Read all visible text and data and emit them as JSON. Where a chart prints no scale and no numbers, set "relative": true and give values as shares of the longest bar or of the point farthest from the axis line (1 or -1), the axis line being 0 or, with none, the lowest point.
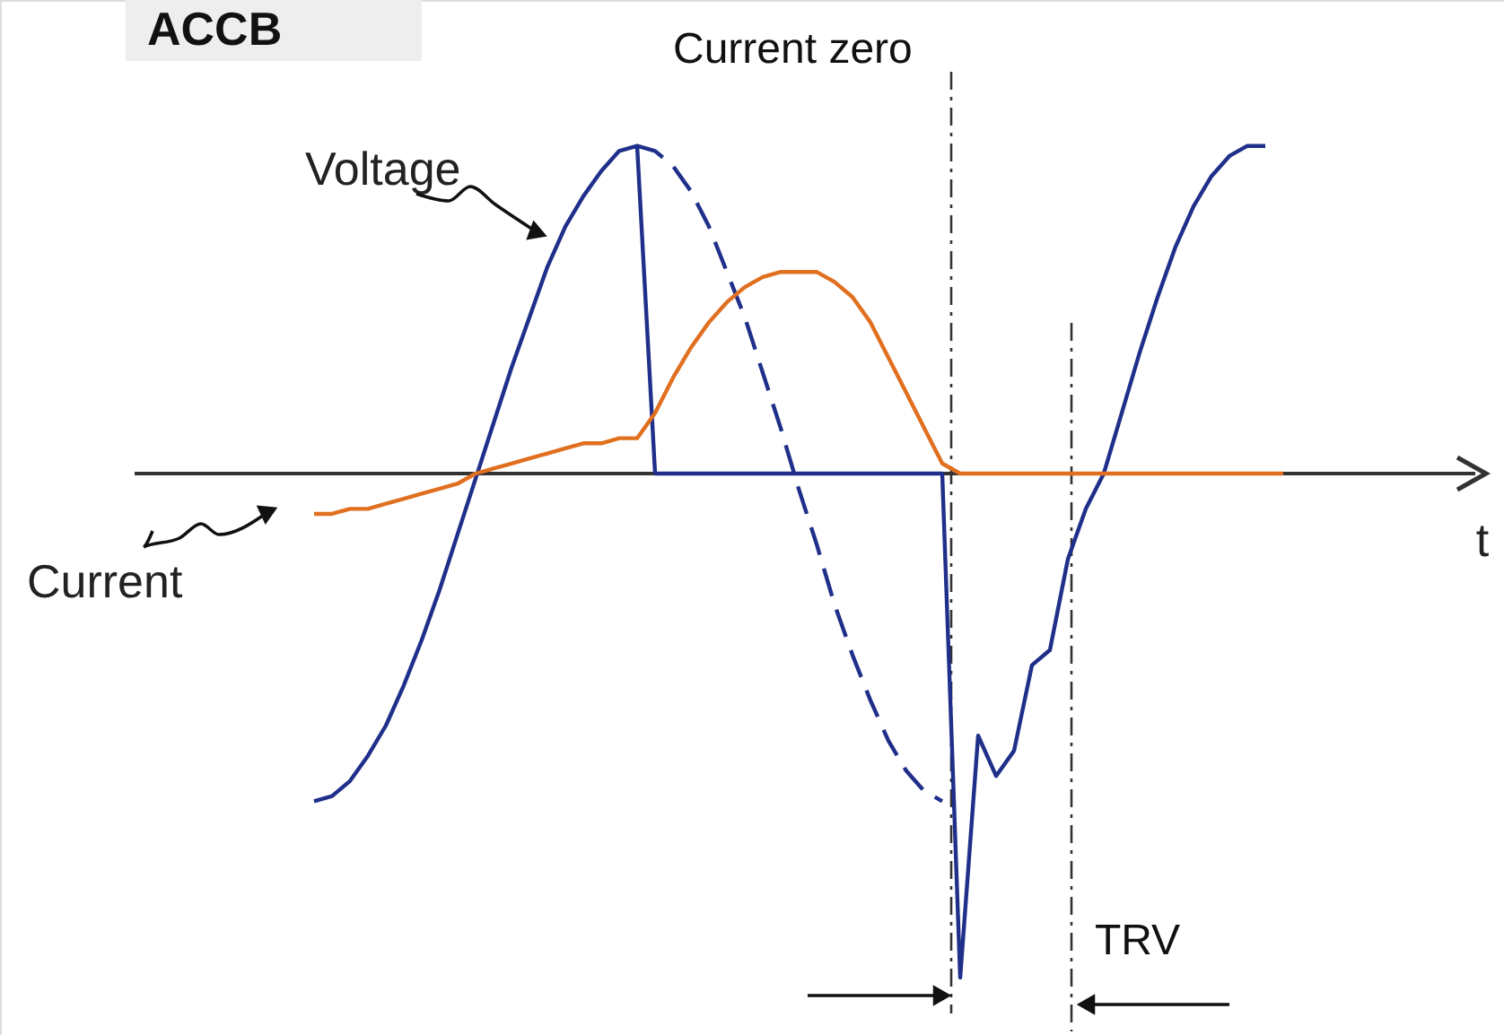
{
  "chart_data": {
    "type": "line",
    "relative": true,
    "xlabel": "t",
    "categories": [
      null,
      null,
      null,
      null,
      null,
      null,
      null,
      null,
      null,
      null,
      null,
      null,
      null,
      null,
      null,
      null,
      null,
      null,
      null,
      null,
      null,
      null,
      null,
      null,
      null,
      null,
      null,
      null,
      null,
      null,
      null,
      null,
      null,
      null,
      null,
      null,
      null,
      null,
      null,
      null,
      null,
      null,
      null,
      null,
      null,
      null,
      null,
      null,
      null,
      null,
      null,
      null,
      null,
      null,
      null
    ],
    "series": [
      {
        "name": "Voltage",
        "color": "#1f2f8a",
        "line_style": "solid",
        "values": [
          -0.65,
          -0.64,
          -0.61,
          -0.56,
          -0.5,
          -0.42,
          -0.33,
          -0.23,
          -0.12,
          -0.01,
          0.1,
          0.21,
          0.31,
          0.41,
          0.49,
          0.55,
          0.6,
          0.64,
          0.65,
          0,
          0,
          0,
          0,
          0,
          0,
          0,
          0,
          0,
          0,
          0,
          0,
          0,
          0,
          0,
          0,
          0,
          -1.0,
          -0.52,
          -0.6,
          -0.55,
          -0.38,
          -0.35,
          -0.17,
          -0.07,
          0.0,
          0.12,
          0.24,
          0.35,
          0.45,
          0.53,
          0.59,
          0.63,
          0.65,
          0.65,
          null
        ]
      },
      {
        "color": "#1f2f8a",
        "line_style": "dashed",
        "values": [
          null,
          null,
          null,
          null,
          null,
          null,
          null,
          null,
          null,
          null,
          null,
          null,
          null,
          null,
          null,
          null,
          null,
          null,
          0.65,
          0.64,
          0.61,
          0.56,
          0.49,
          0.4,
          0.31,
          0.2,
          0.09,
          -0.03,
          -0.14,
          -0.26,
          -0.36,
          -0.45,
          -0.53,
          -0.59,
          -0.63,
          -0.65,
          null,
          null,
          null,
          null,
          null,
          null,
          null,
          null,
          null,
          null,
          null,
          null,
          null,
          null,
          null,
          null,
          null,
          null,
          null
        ]
      },
      {
        "name": "Current",
        "color": "#e07020",
        "line_style": "solid",
        "values": [
          -0.08,
          -0.08,
          -0.07,
          -0.07,
          -0.06,
          -0.05,
          -0.04,
          -0.03,
          -0.02,
          0.0,
          0.01,
          0.02,
          0.03,
          0.04,
          0.05,
          0.06,
          0.06,
          0.07,
          0.07,
          0.12,
          0.19,
          0.25,
          0.3,
          0.34,
          0.37,
          0.39,
          0.4,
          0.4,
          0.4,
          0.38,
          0.35,
          0.3,
          0.23,
          0.16,
          0.09,
          0.02,
          0,
          0,
          0,
          0,
          0,
          0,
          0,
          0,
          0,
          0,
          0,
          0,
          0,
          0,
          0,
          0,
          0,
          0,
          0
        ]
      }
    ],
    "annotations": [
      "ACCB",
      "Current zero",
      "TRV"
    ]
  }
}
